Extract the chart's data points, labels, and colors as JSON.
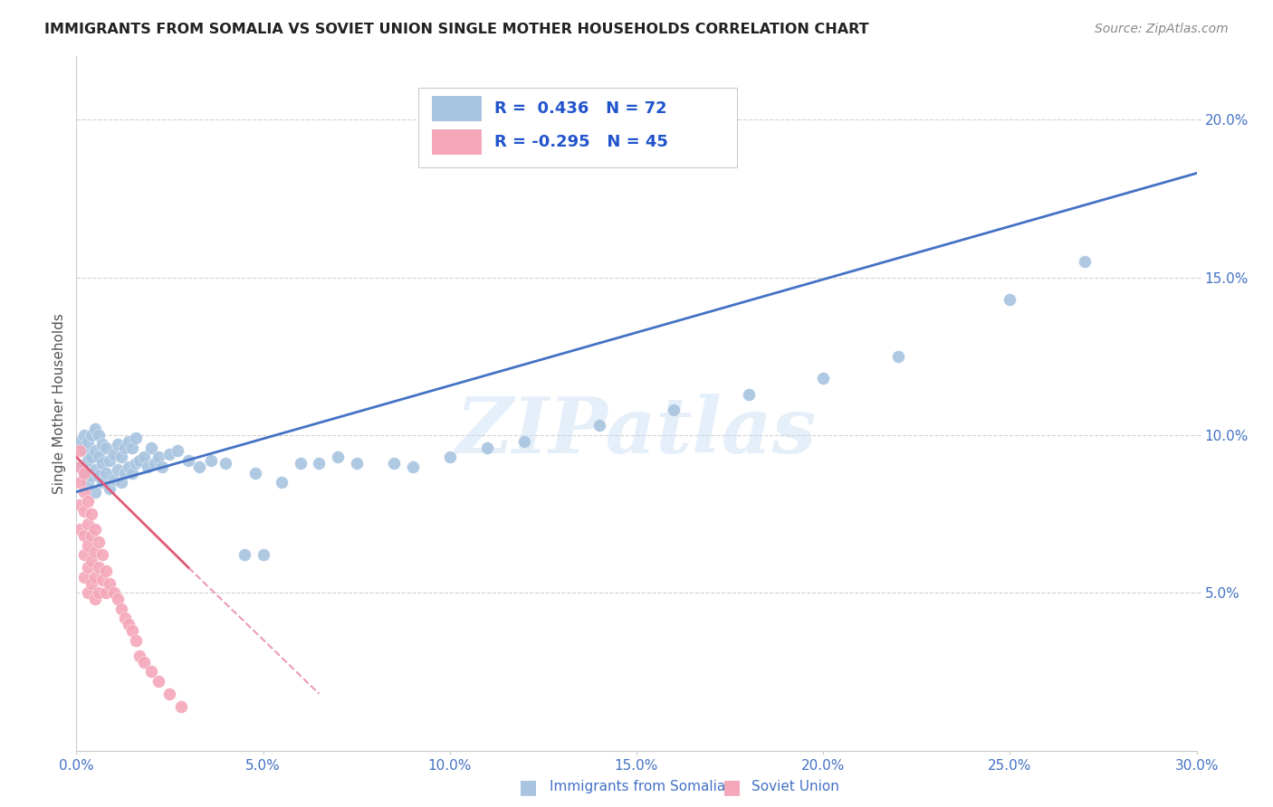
{
  "title": "IMMIGRANTS FROM SOMALIA VS SOVIET UNION SINGLE MOTHER HOUSEHOLDS CORRELATION CHART",
  "source": "Source: ZipAtlas.com",
  "ylabel": "Single Mother Households",
  "watermark": "ZIPatlas",
  "xlim": [
    0.0,
    0.3
  ],
  "ylim": [
    0.0,
    0.22
  ],
  "xticks": [
    0.0,
    0.05,
    0.1,
    0.15,
    0.2,
    0.25,
    0.3
  ],
  "xtick_labels": [
    "0.0%",
    "5.0%",
    "10.0%",
    "15.0%",
    "20.0%",
    "25.0%",
    "30.0%"
  ],
  "yticks": [
    0.05,
    0.1,
    0.15,
    0.2
  ],
  "ytick_labels": [
    "5.0%",
    "10.0%",
    "15.0%",
    "20.0%"
  ],
  "tick_color": "#4472c4",
  "grid_color": "#cccccc",
  "background_color": "#ffffff",
  "somalia_color": "#a8c4e0",
  "soviet_color": "#f4a7b9",
  "somalia_line_color": "#4472c4",
  "soviet_line_color": "#e05a7a",
  "somalia_R": 0.436,
  "somalia_N": 72,
  "soviet_R": -0.295,
  "soviet_N": 45,
  "legend_somalia_label": "Immigrants from Somalia",
  "legend_soviet_label": "Soviet Union",
  "somalia_line_x0": 0.0,
  "somalia_line_y0": 0.082,
  "somalia_line_x1": 0.3,
  "somalia_line_y1": 0.183,
  "soviet_line_x0": 0.0,
  "soviet_line_y0": 0.093,
  "soviet_line_x1": 0.03,
  "soviet_line_y1": 0.058,
  "soviet_line_dash_x1": 0.065,
  "soviet_line_dash_y1": 0.018,
  "somalia_pts_x": [
    0.001,
    0.001,
    0.002,
    0.002,
    0.002,
    0.003,
    0.003,
    0.003,
    0.004,
    0.004,
    0.004,
    0.005,
    0.005,
    0.005,
    0.005,
    0.006,
    0.006,
    0.006,
    0.007,
    0.007,
    0.007,
    0.008,
    0.008,
    0.009,
    0.009,
    0.01,
    0.01,
    0.011,
    0.011,
    0.012,
    0.012,
    0.013,
    0.013,
    0.014,
    0.014,
    0.015,
    0.015,
    0.016,
    0.016,
    0.017,
    0.018,
    0.019,
    0.02,
    0.021,
    0.022,
    0.023,
    0.025,
    0.027,
    0.03,
    0.033,
    0.036,
    0.04,
    0.045,
    0.05,
    0.06,
    0.07,
    0.085,
    0.1,
    0.12,
    0.14,
    0.16,
    0.18,
    0.2,
    0.22,
    0.25,
    0.27,
    0.048,
    0.055,
    0.065,
    0.075,
    0.09,
    0.11
  ],
  "somalia_pts_y": [
    0.09,
    0.098,
    0.088,
    0.095,
    0.1,
    0.085,
    0.092,
    0.098,
    0.087,
    0.093,
    0.1,
    0.082,
    0.089,
    0.095,
    0.102,
    0.087,
    0.093,
    0.1,
    0.085,
    0.091,
    0.097,
    0.088,
    0.096,
    0.083,
    0.092,
    0.086,
    0.094,
    0.089,
    0.097,
    0.085,
    0.093,
    0.088,
    0.096,
    0.09,
    0.098,
    0.088,
    0.096,
    0.091,
    0.099,
    0.092,
    0.093,
    0.09,
    0.096,
    0.091,
    0.093,
    0.09,
    0.094,
    0.095,
    0.092,
    0.09,
    0.092,
    0.091,
    0.062,
    0.062,
    0.091,
    0.093,
    0.091,
    0.093,
    0.098,
    0.103,
    0.108,
    0.113,
    0.118,
    0.125,
    0.143,
    0.155,
    0.088,
    0.085,
    0.091,
    0.091,
    0.09,
    0.096
  ],
  "soviet_pts_x": [
    0.001,
    0.001,
    0.001,
    0.001,
    0.001,
    0.002,
    0.002,
    0.002,
    0.002,
    0.002,
    0.002,
    0.003,
    0.003,
    0.003,
    0.003,
    0.003,
    0.004,
    0.004,
    0.004,
    0.004,
    0.005,
    0.005,
    0.005,
    0.005,
    0.006,
    0.006,
    0.006,
    0.007,
    0.007,
    0.008,
    0.008,
    0.009,
    0.01,
    0.011,
    0.012,
    0.013,
    0.014,
    0.015,
    0.016,
    0.017,
    0.018,
    0.02,
    0.022,
    0.025,
    0.028
  ],
  "soviet_pts_y": [
    0.085,
    0.09,
    0.095,
    0.078,
    0.07,
    0.082,
    0.088,
    0.076,
    0.068,
    0.062,
    0.055,
    0.079,
    0.072,
    0.065,
    0.058,
    0.05,
    0.075,
    0.068,
    0.06,
    0.053,
    0.07,
    0.063,
    0.055,
    0.048,
    0.066,
    0.058,
    0.05,
    0.062,
    0.054,
    0.057,
    0.05,
    0.053,
    0.05,
    0.048,
    0.045,
    0.042,
    0.04,
    0.038,
    0.035,
    0.03,
    0.028,
    0.025,
    0.022,
    0.018,
    0.014
  ]
}
